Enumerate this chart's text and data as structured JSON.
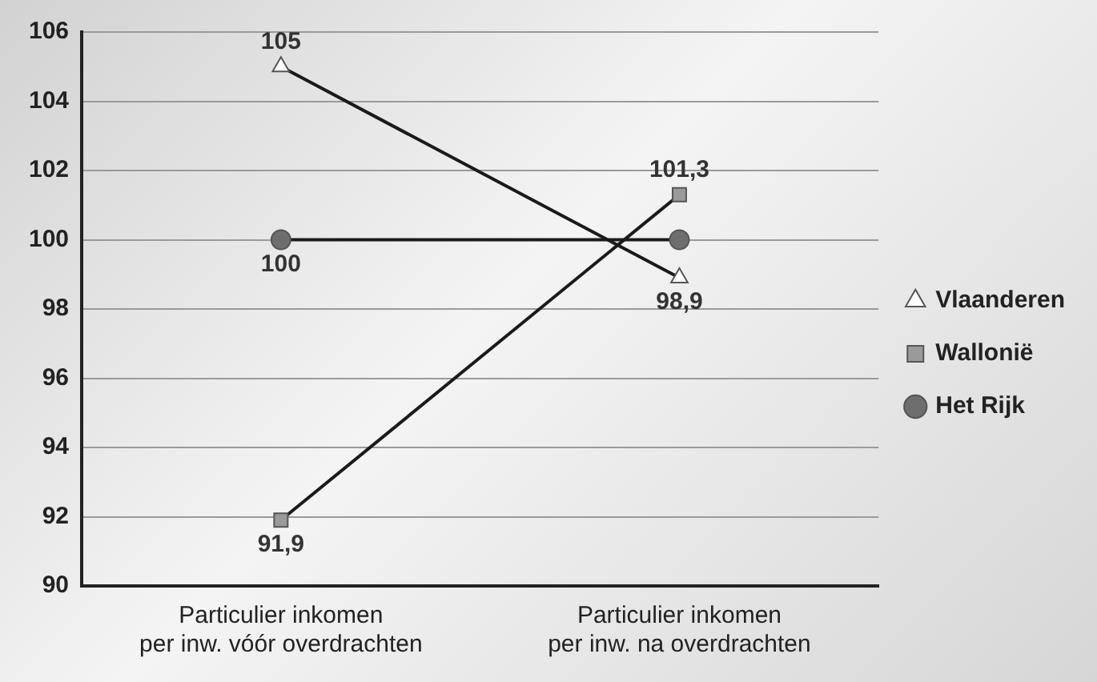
{
  "chart_data": {
    "type": "line",
    "categories": [
      "Particulier inkomen\nper inw. vóór overdrachten",
      "Particulier inkomen\nper inw. na overdrachten"
    ],
    "series": [
      {
        "name": "Vlaanderen",
        "color": "#1a1a1a",
        "marker": "triangle",
        "values": [
          105,
          98.9
        ],
        "value_labels": [
          "105",
          "98,9"
        ]
      },
      {
        "name": "Wallonië",
        "color": "#1a1a1a",
        "marker": "square",
        "values": [
          91.9,
          101.3
        ],
        "value_labels": [
          "91,9",
          "101,3"
        ]
      },
      {
        "name": "Het Rijk",
        "color": "#1a1a1a",
        "marker": "circle",
        "values": [
          100,
          100
        ],
        "value_labels": [
          "100",
          null
        ]
      }
    ],
    "ylim": [
      90,
      106
    ],
    "yticks": [
      90,
      92,
      94,
      96,
      98,
      100,
      102,
      104,
      106
    ],
    "grid": "y",
    "legend": "right",
    "line_style": "solid"
  }
}
